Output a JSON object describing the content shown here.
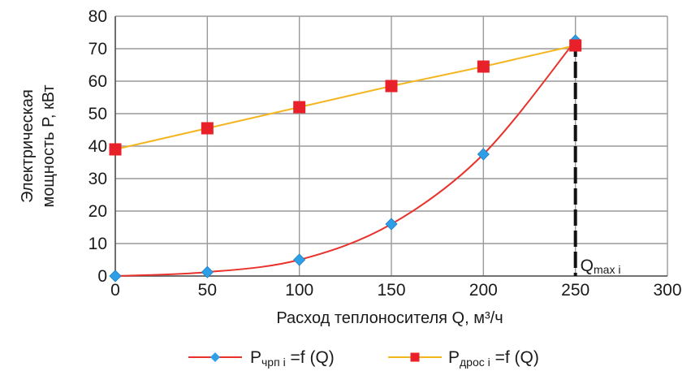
{
  "chart_data": {
    "type": "line",
    "xlabel": "Расход теплоносителя Q, м³/ч",
    "ylabel_line1": "Электрическая",
    "ylabel_line2": "мощность P, кВт",
    "xlim": [
      0,
      300
    ],
    "ylim": [
      0,
      80
    ],
    "xticks": [
      0,
      50,
      100,
      150,
      200,
      250,
      300
    ],
    "yticks": [
      0,
      10,
      20,
      30,
      40,
      50,
      60,
      70,
      80
    ],
    "grid": true,
    "legend_position": "bottom",
    "series": [
      {
        "name": "Pчрп i =f (Q)",
        "name_main": "P",
        "name_sub": "чрп i",
        "name_rest": " =f (Q)",
        "marker": "diamond",
        "line_color": "#e8322b",
        "marker_color": "#2e9fe6",
        "curve": "smooth",
        "x": [
          0,
          50,
          100,
          150,
          200,
          250
        ],
        "y": [
          0,
          1.2,
          5,
          16,
          37.5,
          72.5
        ]
      },
      {
        "name": "Pдрос i =f (Q)",
        "name_main": "P",
        "name_sub": "дрос i",
        "name_rest": " =f (Q)",
        "marker": "square",
        "line_color": "#f3b61f",
        "marker_color": "#e8202a",
        "curve": "straight",
        "x": [
          0,
          50,
          100,
          150,
          200,
          250
        ],
        "y": [
          39,
          45.5,
          52,
          58.5,
          64.5,
          71
        ]
      }
    ],
    "annotation": {
      "main": "Q",
      "sub": "max i",
      "x": 250
    }
  }
}
